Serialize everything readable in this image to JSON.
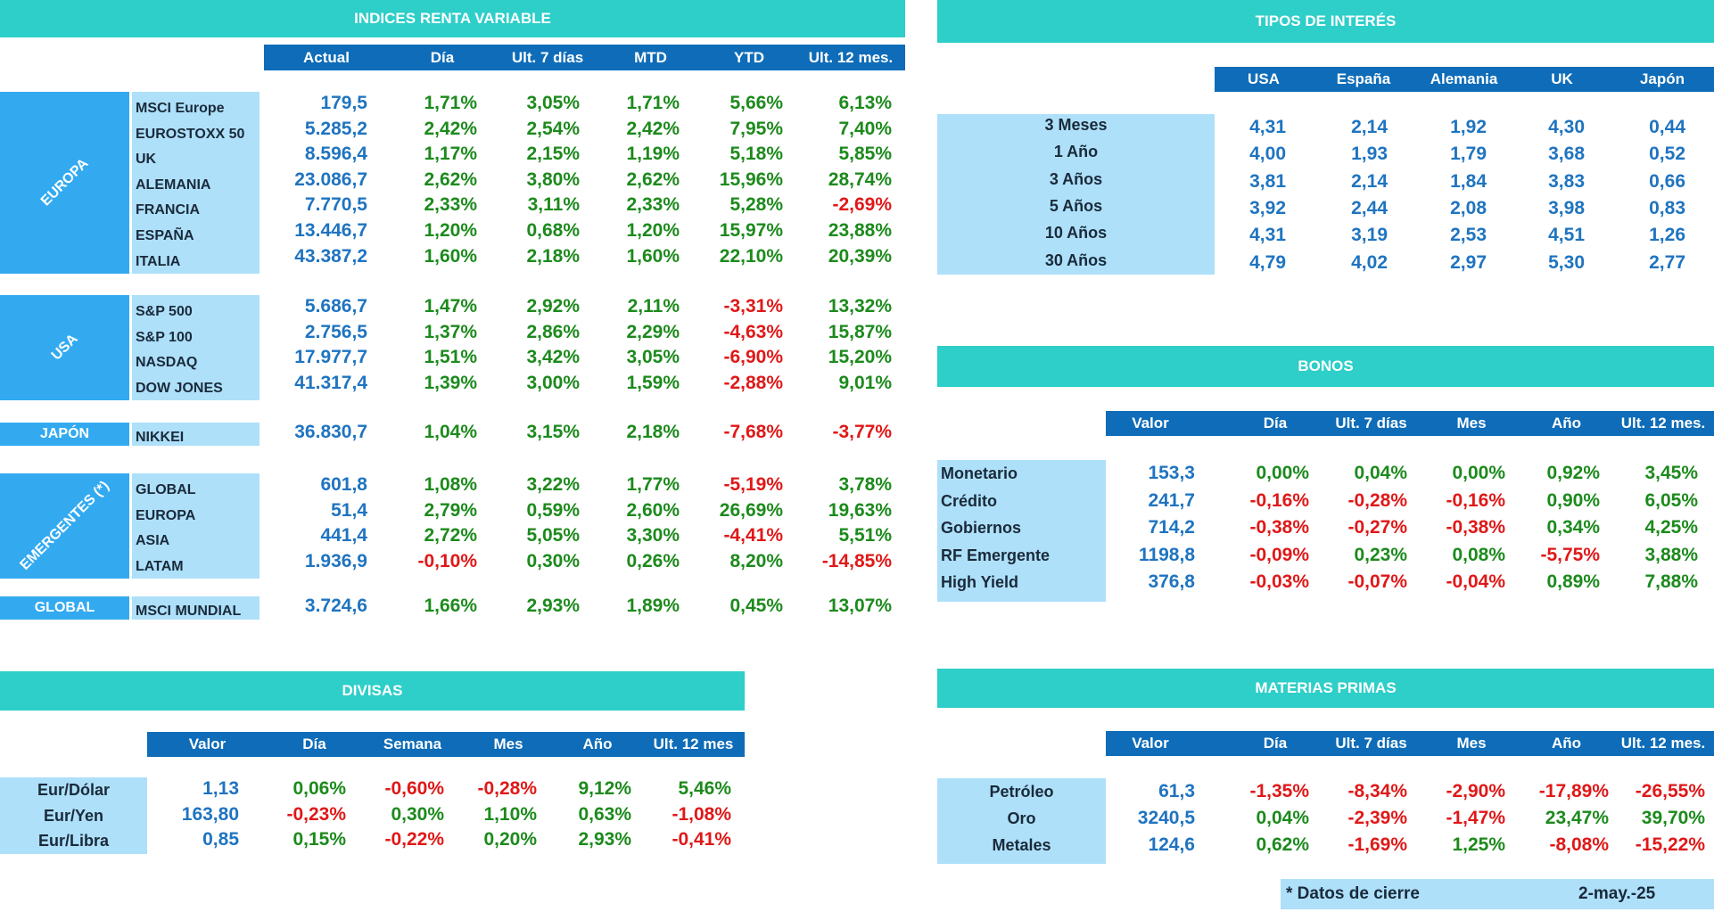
{
  "equity": {
    "title": "INDICES RENTA VARIABLE",
    "headers": [
      "Actual",
      "Día",
      "Ult. 7 días",
      "MTD",
      "YTD",
      "Ult. 12 mes."
    ],
    "groups": [
      {
        "label": "EUROPA",
        "rows": [
          {
            "name": "MSCI Europe",
            "values": [
              "179,5",
              "1,71%",
              "3,05%",
              "1,71%",
              "5,66%",
              "6,13%"
            ]
          },
          {
            "name": "EUROSTOXX 50",
            "values": [
              "5.285,2",
              "2,42%",
              "2,54%",
              "2,42%",
              "7,95%",
              "7,40%"
            ]
          },
          {
            "name": "UK",
            "values": [
              "8.596,4",
              "1,17%",
              "2,15%",
              "1,19%",
              "5,18%",
              "5,85%"
            ]
          },
          {
            "name": "ALEMANIA",
            "values": [
              "23.086,7",
              "2,62%",
              "3,80%",
              "2,62%",
              "15,96%",
              "28,74%"
            ]
          },
          {
            "name": "FRANCIA",
            "values": [
              "7.770,5",
              "2,33%",
              "3,11%",
              "2,33%",
              "5,28%",
              "-2,69%"
            ]
          },
          {
            "name": "ESPAÑA",
            "values": [
              "13.446,7",
              "1,20%",
              "0,68%",
              "1,20%",
              "15,97%",
              "23,88%"
            ]
          },
          {
            "name": "ITALIA",
            "values": [
              "43.387,2",
              "1,60%",
              "2,18%",
              "1,60%",
              "22,10%",
              "20,39%"
            ]
          }
        ]
      },
      {
        "label": "USA",
        "rows": [
          {
            "name": "S&P 500",
            "values": [
              "5.686,7",
              "1,47%",
              "2,92%",
              "2,11%",
              "-3,31%",
              "13,32%"
            ]
          },
          {
            "name": "S&P 100",
            "values": [
              "2.756,5",
              "1,37%",
              "2,86%",
              "2,29%",
              "-4,63%",
              "15,87%"
            ]
          },
          {
            "name": "NASDAQ",
            "values": [
              "17.977,7",
              "1,51%",
              "3,42%",
              "3,05%",
              "-6,90%",
              "15,20%"
            ]
          },
          {
            "name": "DOW JONES",
            "values": [
              "41.317,4",
              "1,39%",
              "3,00%",
              "1,59%",
              "-2,88%",
              "9,01%"
            ]
          }
        ]
      },
      {
        "label": "JAPÓN",
        "rows": [
          {
            "name": "NIKKEI",
            "values": [
              "36.830,7",
              "1,04%",
              "3,15%",
              "2,18%",
              "-7,68%",
              "-3,77%"
            ]
          }
        ]
      },
      {
        "label": "EMERGENTES (*)",
        "rows": [
          {
            "name": "GLOBAL",
            "values": [
              "601,8",
              "1,08%",
              "3,22%",
              "1,77%",
              "-5,19%",
              "3,78%"
            ]
          },
          {
            "name": "EUROPA",
            "values": [
              "51,4",
              "2,79%",
              "0,59%",
              "2,60%",
              "26,69%",
              "19,63%"
            ]
          },
          {
            "name": "ASIA",
            "values": [
              "441,4",
              "2,72%",
              "5,05%",
              "3,30%",
              "-4,41%",
              "5,51%"
            ]
          },
          {
            "name": "LATAM",
            "values": [
              "1.936,9",
              "-0,10%",
              "0,30%",
              "0,26%",
              "8,20%",
              "-14,85%"
            ]
          }
        ]
      },
      {
        "label": "GLOBAL",
        "rows": [
          {
            "name": "MSCI MUNDIAL",
            "values": [
              "3.724,6",
              "1,66%",
              "2,93%",
              "1,89%",
              "0,45%",
              "13,07%"
            ]
          }
        ]
      }
    ]
  },
  "rates": {
    "title": "TIPOS DE INTERÉS",
    "headers": [
      "USA",
      "España",
      "Alemania",
      "UK",
      "Japón"
    ],
    "rows": [
      {
        "name": "3 Meses",
        "values": [
          "4,31",
          "2,14",
          "1,92",
          "4,30",
          "0,44"
        ]
      },
      {
        "name": "1 Año",
        "values": [
          "4,00",
          "1,93",
          "1,79",
          "3,68",
          "0,52"
        ]
      },
      {
        "name": "3 Años",
        "values": [
          "3,81",
          "2,14",
          "1,84",
          "3,83",
          "0,66"
        ]
      },
      {
        "name": "5 Años",
        "values": [
          "3,92",
          "2,44",
          "2,08",
          "3,98",
          "0,83"
        ]
      },
      {
        "name": "10 Años",
        "values": [
          "4,31",
          "3,19",
          "2,53",
          "4,51",
          "1,26"
        ]
      },
      {
        "name": "30 Años",
        "values": [
          "4,79",
          "4,02",
          "2,97",
          "5,30",
          "2,77"
        ]
      }
    ]
  },
  "bonds": {
    "title": "BONOS",
    "headers": [
      "Valor",
      "Día",
      "Ult. 7 días",
      "Mes",
      "Año",
      "Ult. 12 mes."
    ],
    "rows": [
      {
        "name": "Monetario",
        "values": [
          "153,3",
          "0,00%",
          "0,04%",
          "0,00%",
          "0,92%",
          "3,45%"
        ]
      },
      {
        "name": "Crédito",
        "values": [
          "241,7",
          "-0,16%",
          "-0,28%",
          "-0,16%",
          "0,90%",
          "6,05%"
        ]
      },
      {
        "name": "Gobiernos",
        "values": [
          "714,2",
          "-0,38%",
          "-0,27%",
          "-0,38%",
          "0,34%",
          "4,25%"
        ]
      },
      {
        "name": "RF Emergente",
        "values": [
          "1198,8",
          "-0,09%",
          "0,23%",
          "0,08%",
          "-5,75%",
          "3,88%"
        ]
      },
      {
        "name": "High Yield",
        "values": [
          "376,8",
          "-0,03%",
          "-0,07%",
          "-0,04%",
          "0,89%",
          "7,88%"
        ]
      }
    ]
  },
  "fx": {
    "title": "DIVISAS",
    "headers": [
      "Valor",
      "Día",
      "Semana",
      "Mes",
      "Año",
      "Ult. 12 mes"
    ],
    "rows": [
      {
        "name": "Eur/Dólar",
        "values": [
          "1,13",
          "0,06%",
          "-0,60%",
          "-0,28%",
          "9,12%",
          "5,46%"
        ]
      },
      {
        "name": "Eur/Yen",
        "values": [
          "163,80",
          "-0,23%",
          "0,30%",
          "1,10%",
          "0,63%",
          "-1,08%"
        ]
      },
      {
        "name": "Eur/Libra",
        "values": [
          "0,85",
          "0,15%",
          "-0,22%",
          "0,20%",
          "2,93%",
          "-0,41%"
        ]
      }
    ]
  },
  "commodities": {
    "title": "MATERIAS PRIMAS",
    "headers": [
      "Valor",
      "Día",
      "Ult. 7 días",
      "Mes",
      "Año",
      "Ult. 12 mes."
    ],
    "rows": [
      {
        "name": "Petróleo",
        "values": [
          "61,3",
          "-1,35%",
          "-8,34%",
          "-2,90%",
          "-17,89%",
          "-26,55%"
        ]
      },
      {
        "name": "Oro",
        "values": [
          "3240,5",
          "0,04%",
          "-2,39%",
          "-1,47%",
          "23,47%",
          "39,70%"
        ]
      },
      {
        "name": "Metales",
        "values": [
          "124,6",
          "0,62%",
          "-1,69%",
          "1,25%",
          "-8,08%",
          "-15,22%"
        ]
      }
    ]
  },
  "footer": {
    "note": "* Datos de cierre",
    "date": "2-may.-25"
  },
  "colors": {
    "banner": "#2ecec9",
    "header": "#0e6cb8",
    "label_bg": "#aee0fa",
    "side_bg": "#33aaf0",
    "value_blue": "#1f74c0",
    "positive": "#1c8a1c",
    "negative": "#e01818"
  }
}
